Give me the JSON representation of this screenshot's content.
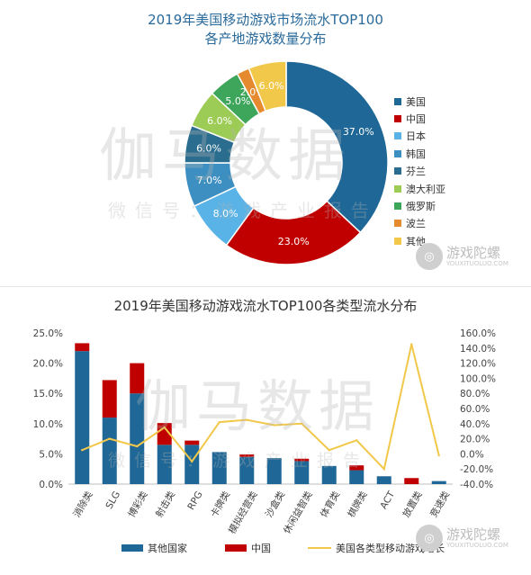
{
  "chart_data": [
    {
      "type": "pie",
      "title": "2019年美国移动游戏市场流水TOP100",
      "subtitle": "各产地游戏数量分布",
      "legend_position": "right",
      "slices": [
        {
          "label": "美国",
          "value": 37.0,
          "display": "37.0%",
          "color": "#1f6796"
        },
        {
          "label": "中国",
          "value": 23.0,
          "display": "23.0%",
          "color": "#c00000"
        },
        {
          "label": "日本",
          "value": 8.0,
          "display": "8.0%",
          "color": "#59b3e6"
        },
        {
          "label": "韩国",
          "value": 7.0,
          "display": "7.0%",
          "color": "#3d8fc2"
        },
        {
          "label": "芬兰",
          "value": 6.0,
          "display": "6.0%",
          "color": "#2b6d8f"
        },
        {
          "label": "澳大利亚",
          "value": 6.0,
          "display": "6.0%",
          "color": "#9ccc55"
        },
        {
          "label": "俄罗斯",
          "value": 5.0,
          "display": "5.0%",
          "color": "#3da65a"
        },
        {
          "label": "波兰",
          "value": 2.0,
          "display": "2.0%",
          "color": "#e58a2e"
        },
        {
          "label": "其他",
          "value": 6.0,
          "display": "6.0%",
          "color": "#f2c84b"
        }
      ]
    },
    {
      "type": "bar",
      "stacked": true,
      "title": "2019年美国移动游戏流水TOP100各类型流水分布",
      "categories": [
        "消除类",
        "SLG",
        "博彩类",
        "射击类",
        "RPG",
        "卡牌类",
        "模拟经营类",
        "沙盒类",
        "休闲益智类",
        "体育类",
        "棋牌类",
        "ACT",
        "放置类",
        "竞速类"
      ],
      "series": [
        {
          "name": "其他国家",
          "color": "#1f6796",
          "values": [
            22.0,
            11.0,
            15.0,
            6.5,
            6.5,
            5.3,
            4.5,
            4.3,
            3.8,
            3.0,
            2.3,
            1.3,
            0.0,
            0.5
          ]
        },
        {
          "name": "中国",
          "color": "#c00000",
          "values": [
            1.3,
            6.2,
            5.0,
            3.6,
            0.7,
            0.0,
            0.4,
            0.0,
            0.4,
            0.0,
            0.8,
            0.0,
            1.0,
            0.0
          ]
        }
      ],
      "line_series": {
        "name": "美国各类型移动游戏增长",
        "color": "#f2c84b",
        "axis": "right",
        "values": [
          5,
          20,
          10,
          35,
          -10,
          42,
          45,
          38,
          40,
          5,
          18,
          -20,
          145,
          -2
        ]
      },
      "y_left": {
        "ticks": [
          "0.0%",
          "5.0%",
          "10.0%",
          "15.0%",
          "20.0%",
          "25.0%"
        ],
        "ylim": [
          0,
          25
        ]
      },
      "y_right": {
        "ticks": [
          "-40.0%",
          "-20.0%",
          "0.0%",
          "20.0%",
          "40.0%",
          "60.0%",
          "80.0%",
          "100.0%",
          "120.0%",
          "140.0%",
          "160.0%"
        ],
        "ylim": [
          -40,
          160
        ]
      },
      "legend_position": "bottom",
      "grid": false
    }
  ],
  "watermarks": {
    "main": "伽马数据",
    "sub": "微信号：游戏产业报告"
  },
  "logos": [
    {
      "name": "游戏陀螺",
      "url": "YOUXITUOLUO.COM",
      "badge": "◎"
    },
    {
      "name": "游戏陀螺",
      "url": "YOUXITUOLUO.COM",
      "badge": "◎"
    }
  ]
}
